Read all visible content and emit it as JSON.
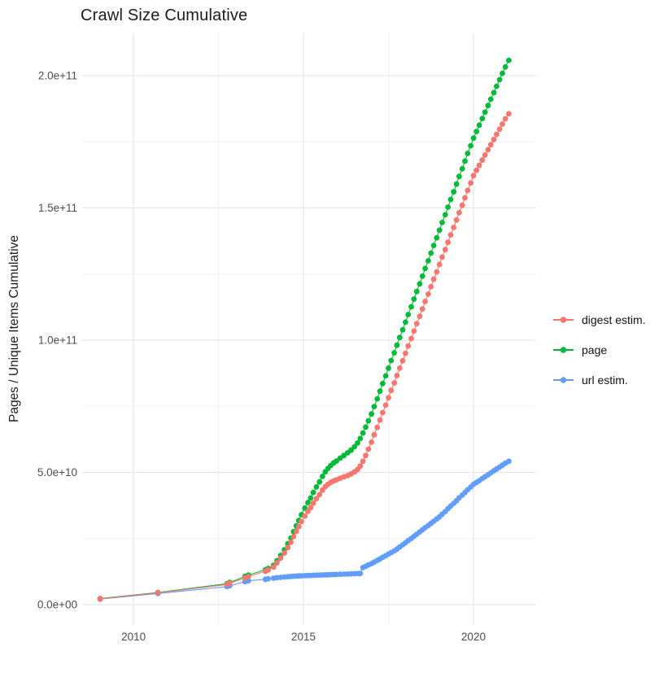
{
  "chart_data": {
    "type": "line",
    "style": "points-with-line",
    "title": "Crawl Size Cumulative",
    "xlabel": "",
    "ylabel": "Pages / Unique Items Cumulative",
    "value_unit": "1e9 (billions)",
    "grid": true,
    "legend_position": "right",
    "x_domain_years": [
      2008.49,
      2021.82
    ],
    "y_domain_billions": [
      -7.7,
      216
    ],
    "x_ticks": [
      {
        "year": 2010,
        "label": "2010"
      },
      {
        "year": 2015,
        "label": "2015"
      },
      {
        "year": 2020,
        "label": "2020"
      }
    ],
    "x_minor_gridlines_years": [
      2012.5,
      2017.5
    ],
    "y_ticks": [
      {
        "value": 0,
        "label": "0.0e+00"
      },
      {
        "value": 50,
        "label": "5.0e+10"
      },
      {
        "value": 100,
        "label": "1.0e+11"
      },
      {
        "value": 150,
        "label": "1.5e+11"
      },
      {
        "value": 200,
        "label": "2.0e+11"
      }
    ],
    "y_minor_gridlines": [
      25,
      75,
      125,
      175
    ],
    "theme": {
      "background": "#ffffff",
      "grid_major_color": "#e6e6e6",
      "grid_minor_color": "#f2f2f2",
      "tick_label_color": "#4d4d4d",
      "text_color": "#1b1b1b"
    },
    "series": [
      {
        "name": "digest estim.",
        "color": "#F8766D",
        "z": 3,
        "points": [
          [
            2009.02,
            2.2
          ],
          [
            2010.72,
            4.5
          ],
          [
            2012.75,
            7.6
          ],
          [
            2012.83,
            8.1
          ],
          [
            2013.28,
            10.1
          ],
          [
            2013.38,
            10.6
          ],
          [
            2013.88,
            12.6
          ],
          [
            2013.96,
            13.1
          ],
          [
            2014.12,
            14.2
          ],
          [
            2014.22,
            15.8
          ],
          [
            2014.33,
            17.6
          ],
          [
            2014.44,
            19.5
          ],
          [
            2014.54,
            21.6
          ],
          [
            2014.63,
            23.6
          ],
          [
            2014.71,
            25.7
          ],
          [
            2014.79,
            27.7
          ],
          [
            2014.86,
            29.5
          ],
          [
            2014.94,
            31.4
          ],
          [
            2015.04,
            33.5
          ],
          [
            2015.13,
            35.3
          ],
          [
            2015.21,
            36.7
          ],
          [
            2015.29,
            38.4
          ],
          [
            2015.38,
            40.1
          ],
          [
            2015.47,
            41.6
          ],
          [
            2015.56,
            43.3
          ],
          [
            2015.64,
            44.6
          ],
          [
            2015.72,
            45.5
          ],
          [
            2015.8,
            46.2
          ],
          [
            2015.89,
            46.8
          ],
          [
            2015.97,
            47.2
          ],
          [
            2016.08,
            47.8
          ],
          [
            2016.19,
            48.3
          ],
          [
            2016.3,
            48.8
          ],
          [
            2016.4,
            49.4
          ],
          [
            2016.5,
            50.2
          ],
          [
            2016.59,
            51.1
          ],
          [
            2016.67,
            52.4
          ],
          [
            2016.75,
            54.2
          ],
          [
            2016.83,
            56.4
          ],
          [
            2016.91,
            58.8
          ],
          [
            2017.0,
            61.4
          ],
          [
            2017.08,
            64.2
          ],
          [
            2017.17,
            67.0
          ],
          [
            2017.25,
            69.8
          ],
          [
            2017.33,
            72.6
          ],
          [
            2017.42,
            75.4
          ],
          [
            2017.5,
            78.2
          ],
          [
            2017.58,
            81.0
          ],
          [
            2017.67,
            83.8
          ],
          [
            2017.75,
            86.6
          ],
          [
            2017.83,
            89.4
          ],
          [
            2017.92,
            92.2
          ],
          [
            2018.0,
            95.0
          ],
          [
            2018.08,
            97.8
          ],
          [
            2018.17,
            100.6
          ],
          [
            2018.25,
            103.4
          ],
          [
            2018.33,
            106.2
          ],
          [
            2018.42,
            109.0
          ],
          [
            2018.5,
            111.8
          ],
          [
            2018.58,
            114.6
          ],
          [
            2018.67,
            117.4
          ],
          [
            2018.75,
            120.2
          ],
          [
            2018.83,
            123.0
          ],
          [
            2018.92,
            125.8
          ],
          [
            2019.0,
            128.6
          ],
          [
            2019.08,
            131.4
          ],
          [
            2019.17,
            134.2
          ],
          [
            2019.25,
            137.0
          ],
          [
            2019.33,
            139.8
          ],
          [
            2019.42,
            142.6
          ],
          [
            2019.5,
            145.4
          ],
          [
            2019.58,
            148.2
          ],
          [
            2019.67,
            151.0
          ],
          [
            2019.75,
            153.8
          ],
          [
            2019.83,
            156.6
          ],
          [
            2019.92,
            159.4
          ],
          [
            2020.0,
            162.2
          ],
          [
            2020.09,
            164.2
          ],
          [
            2020.17,
            166.1
          ],
          [
            2020.26,
            168.1
          ],
          [
            2020.34,
            170.0
          ],
          [
            2020.43,
            172.0
          ],
          [
            2020.51,
            173.9
          ],
          [
            2020.6,
            175.9
          ],
          [
            2020.68,
            177.8
          ],
          [
            2020.77,
            179.8
          ],
          [
            2020.85,
            181.7
          ],
          [
            2020.94,
            183.7
          ],
          [
            2021.04,
            185.6
          ]
        ]
      },
      {
        "name": "page",
        "color": "#00BA38",
        "z": 1,
        "points": [
          [
            2009.02,
            2.3
          ],
          [
            2010.72,
            4.6
          ],
          [
            2012.75,
            7.9
          ],
          [
            2012.83,
            8.4
          ],
          [
            2013.28,
            10.7
          ],
          [
            2013.38,
            11.2
          ],
          [
            2013.88,
            13.2
          ],
          [
            2013.96,
            13.7
          ],
          [
            2014.12,
            14.9
          ],
          [
            2014.22,
            16.6
          ],
          [
            2014.33,
            18.6
          ],
          [
            2014.44,
            20.7
          ],
          [
            2014.54,
            23.0
          ],
          [
            2014.63,
            25.2
          ],
          [
            2014.71,
            27.6
          ],
          [
            2014.79,
            29.8
          ],
          [
            2014.86,
            31.8
          ],
          [
            2014.94,
            34.0
          ],
          [
            2015.04,
            36.5
          ],
          [
            2015.13,
            38.6
          ],
          [
            2015.21,
            40.3
          ],
          [
            2015.29,
            42.4
          ],
          [
            2015.38,
            44.5
          ],
          [
            2015.47,
            46.4
          ],
          [
            2015.56,
            48.5
          ],
          [
            2015.64,
            50.2
          ],
          [
            2015.72,
            51.5
          ],
          [
            2015.8,
            52.6
          ],
          [
            2015.89,
            53.6
          ],
          [
            2015.97,
            54.3
          ],
          [
            2016.08,
            55.4
          ],
          [
            2016.19,
            56.4
          ],
          [
            2016.3,
            57.4
          ],
          [
            2016.4,
            58.4
          ],
          [
            2016.5,
            59.7
          ],
          [
            2016.59,
            61.1
          ],
          [
            2016.67,
            62.8
          ],
          [
            2016.75,
            64.9
          ],
          [
            2016.83,
            67.1
          ],
          [
            2016.91,
            69.5
          ],
          [
            2017.0,
            72.1
          ],
          [
            2017.08,
            74.9
          ],
          [
            2017.17,
            77.8
          ],
          [
            2017.25,
            80.7
          ],
          [
            2017.33,
            83.6
          ],
          [
            2017.42,
            86.5
          ],
          [
            2017.5,
            89.4
          ],
          [
            2017.58,
            92.3
          ],
          [
            2017.67,
            95.2
          ],
          [
            2017.75,
            98.1
          ],
          [
            2017.83,
            101.0
          ],
          [
            2017.92,
            103.9
          ],
          [
            2018.0,
            106.8
          ],
          [
            2018.08,
            109.7
          ],
          [
            2018.17,
            112.6
          ],
          [
            2018.25,
            115.5
          ],
          [
            2018.33,
            118.4
          ],
          [
            2018.42,
            121.3
          ],
          [
            2018.5,
            124.2
          ],
          [
            2018.58,
            127.1
          ],
          [
            2018.67,
            130.0
          ],
          [
            2018.75,
            132.9
          ],
          [
            2018.83,
            135.8
          ],
          [
            2018.92,
            138.7
          ],
          [
            2019.0,
            141.6
          ],
          [
            2019.08,
            144.5
          ],
          [
            2019.17,
            147.4
          ],
          [
            2019.25,
            150.3
          ],
          [
            2019.33,
            153.2
          ],
          [
            2019.42,
            156.1
          ],
          [
            2019.5,
            159.0
          ],
          [
            2019.58,
            161.9
          ],
          [
            2019.67,
            164.8
          ],
          [
            2019.75,
            167.7
          ],
          [
            2019.83,
            170.6
          ],
          [
            2019.92,
            173.5
          ],
          [
            2020.0,
            176.4
          ],
          [
            2020.09,
            178.9
          ],
          [
            2020.17,
            181.3
          ],
          [
            2020.26,
            183.8
          ],
          [
            2020.34,
            186.2
          ],
          [
            2020.43,
            188.7
          ],
          [
            2020.51,
            191.1
          ],
          [
            2020.6,
            193.6
          ],
          [
            2020.68,
            196.0
          ],
          [
            2020.77,
            198.5
          ],
          [
            2020.85,
            200.9
          ],
          [
            2020.94,
            203.3
          ],
          [
            2021.04,
            205.8
          ]
        ]
      },
      {
        "name": "url estim.",
        "color": "#619CFF",
        "z": 2,
        "points": [
          [
            2009.02,
            2.1
          ],
          [
            2010.72,
            4.2
          ],
          [
            2012.75,
            6.8
          ],
          [
            2012.83,
            7.1
          ],
          [
            2013.28,
            8.7
          ],
          [
            2013.38,
            9.0
          ],
          [
            2013.88,
            9.6
          ],
          [
            2013.96,
            9.8
          ],
          [
            2014.12,
            10.0
          ],
          [
            2014.22,
            10.2
          ],
          [
            2014.33,
            10.3
          ],
          [
            2014.44,
            10.45
          ],
          [
            2014.54,
            10.55
          ],
          [
            2014.63,
            10.65
          ],
          [
            2014.71,
            10.72
          ],
          [
            2014.79,
            10.78
          ],
          [
            2014.86,
            10.84
          ],
          [
            2014.94,
            10.9
          ],
          [
            2015.04,
            10.96
          ],
          [
            2015.13,
            11.0
          ],
          [
            2015.21,
            11.05
          ],
          [
            2015.29,
            11.1
          ],
          [
            2015.38,
            11.14
          ],
          [
            2015.47,
            11.18
          ],
          [
            2015.56,
            11.22
          ],
          [
            2015.64,
            11.26
          ],
          [
            2015.72,
            11.3
          ],
          [
            2015.8,
            11.34
          ],
          [
            2015.89,
            11.38
          ],
          [
            2015.97,
            11.42
          ],
          [
            2016.08,
            11.47
          ],
          [
            2016.19,
            11.52
          ],
          [
            2016.3,
            11.57
          ],
          [
            2016.4,
            11.62
          ],
          [
            2016.5,
            11.67
          ],
          [
            2016.59,
            11.72
          ],
          [
            2016.67,
            11.77
          ],
          [
            2016.75,
            14.0
          ],
          [
            2016.83,
            14.5
          ],
          [
            2016.91,
            15.0
          ],
          [
            2017.0,
            15.5
          ],
          [
            2017.08,
            16.1
          ],
          [
            2017.17,
            16.7
          ],
          [
            2017.25,
            17.3
          ],
          [
            2017.33,
            17.9
          ],
          [
            2017.42,
            18.5
          ],
          [
            2017.5,
            19.1
          ],
          [
            2017.58,
            19.7
          ],
          [
            2017.67,
            20.3
          ],
          [
            2017.75,
            21.0
          ],
          [
            2017.83,
            21.8
          ],
          [
            2017.92,
            22.6
          ],
          [
            2018.0,
            23.4
          ],
          [
            2018.08,
            24.2
          ],
          [
            2018.17,
            25.0
          ],
          [
            2018.25,
            25.8
          ],
          [
            2018.33,
            26.6
          ],
          [
            2018.42,
            27.5
          ],
          [
            2018.5,
            28.3
          ],
          [
            2018.58,
            29.1
          ],
          [
            2018.67,
            29.9
          ],
          [
            2018.75,
            30.7
          ],
          [
            2018.83,
            31.5
          ],
          [
            2018.92,
            32.4
          ],
          [
            2019.0,
            33.2
          ],
          [
            2019.08,
            34.2
          ],
          [
            2019.17,
            35.2
          ],
          [
            2019.25,
            36.3
          ],
          [
            2019.33,
            37.3
          ],
          [
            2019.42,
            38.3
          ],
          [
            2019.5,
            39.3
          ],
          [
            2019.58,
            40.4
          ],
          [
            2019.67,
            41.4
          ],
          [
            2019.75,
            42.4
          ],
          [
            2019.83,
            43.4
          ],
          [
            2019.92,
            44.5
          ],
          [
            2020.0,
            45.5
          ],
          [
            2020.09,
            46.2
          ],
          [
            2020.17,
            46.9
          ],
          [
            2020.26,
            47.7
          ],
          [
            2020.34,
            48.4
          ],
          [
            2020.43,
            49.1
          ],
          [
            2020.51,
            49.8
          ],
          [
            2020.6,
            50.6
          ],
          [
            2020.68,
            51.3
          ],
          [
            2020.77,
            52.0
          ],
          [
            2020.85,
            52.7
          ],
          [
            2020.94,
            53.5
          ],
          [
            2021.04,
            54.2
          ]
        ]
      }
    ]
  }
}
